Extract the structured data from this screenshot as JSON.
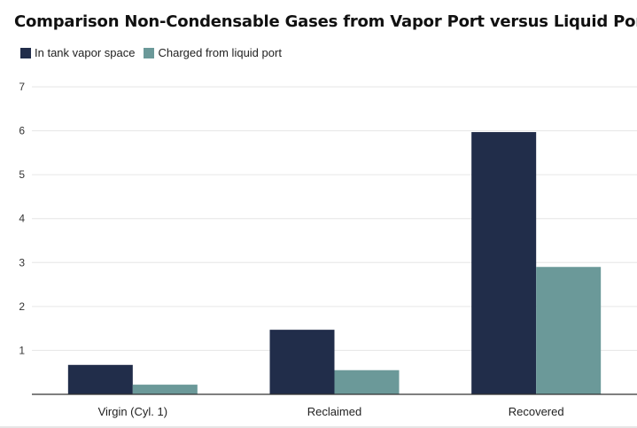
{
  "chart_data": {
    "type": "bar",
    "title": "Comparison Non-Condensable Gases from Vapor Port versus Liquid Port",
    "xlabel": "",
    "ylabel": "",
    "categories": [
      "Virgin (Cyl. 1)",
      "Reclaimed",
      "Recovered"
    ],
    "series": [
      {
        "name": "In tank vapor space",
        "color": "#212d4a",
        "values": [
          0.67,
          1.47,
          5.97
        ]
      },
      {
        "name": "Charged from liquid port",
        "color": "#6b9999",
        "values": [
          0.22,
          0.55,
          2.9
        ]
      }
    ],
    "ylim": [
      0,
      7
    ],
    "yticks": [
      "1",
      "2",
      "3",
      "4",
      "5",
      "6",
      "7"
    ],
    "grid": true,
    "legend_position": "top-left"
  }
}
